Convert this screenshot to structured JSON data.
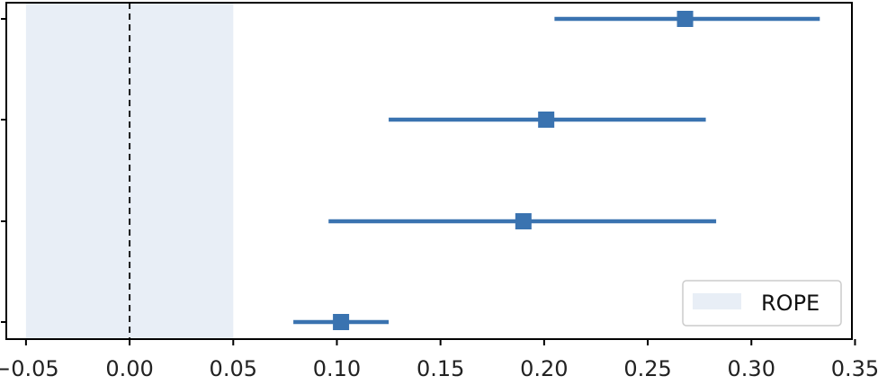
{
  "chart_data": {
    "type": "scatter",
    "title": "",
    "xlabel": "",
    "ylabel": "",
    "xlim": [
      -0.0595,
      0.3485
    ],
    "xticks": [
      -0.05,
      0.0,
      0.05,
      0.1,
      0.15,
      0.2,
      0.25,
      0.3,
      0.35
    ],
    "xtick_labels": [
      "−0.05",
      "0.00",
      "0.05",
      "0.10",
      "0.15",
      "0.20",
      "0.25",
      "0.30",
      "0.35"
    ],
    "yticks_count": 4,
    "yticks_labels_visible": false,
    "grid": false,
    "reference_line": {
      "x": 0.0,
      "style": "dashed",
      "color": "#1a1a1a"
    },
    "rope": {
      "low": -0.05,
      "high": 0.05,
      "label": "ROPE",
      "color": "#e8eef6"
    },
    "marker_color": "#3a73b0",
    "points": [
      {
        "estimate": 0.268,
        "lower": 0.205,
        "upper": 0.333
      },
      {
        "estimate": 0.201,
        "lower": 0.125,
        "upper": 0.278
      },
      {
        "estimate": 0.19,
        "lower": 0.096,
        "upper": 0.283
      },
      {
        "estimate": 0.102,
        "lower": 0.079,
        "upper": 0.125
      }
    ],
    "legend": {
      "location": "lower right",
      "entries": [
        "ROPE"
      ]
    }
  }
}
